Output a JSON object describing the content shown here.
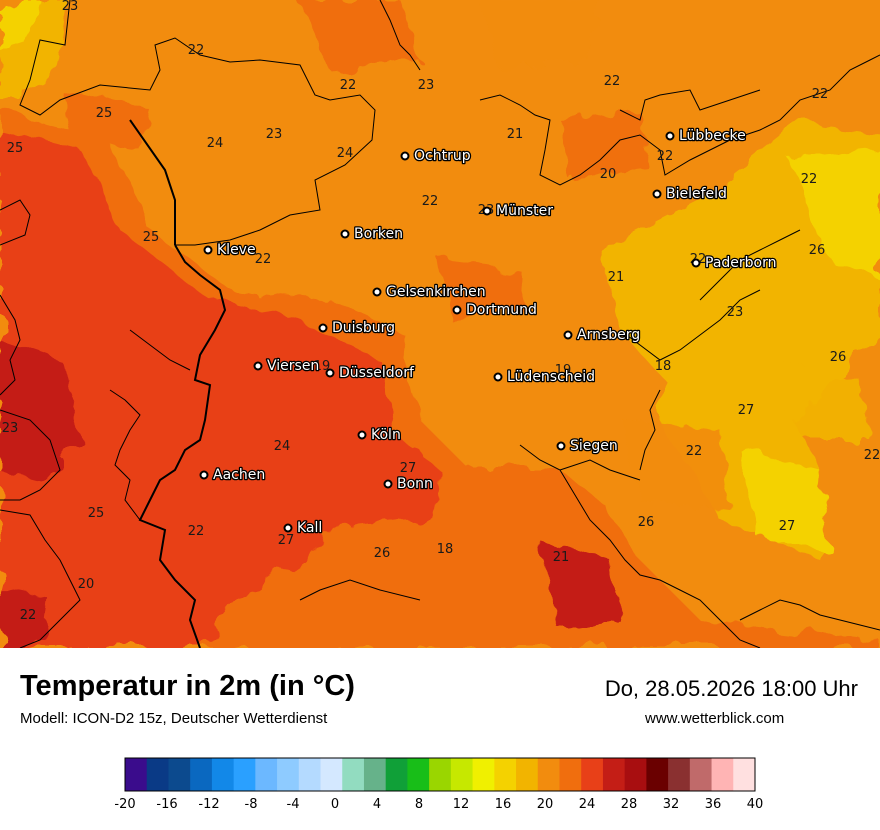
{
  "title": "Temperatur in 2m (in °C)",
  "model": "Modell: ICON-D2 15z, Deutscher Wetterdienst",
  "datetime": "Do, 28.05.2026 18:00 Uhr",
  "website": "www.wetterblick.com",
  "cities": [
    {
      "name": "Lübbecke"
    },
    {
      "name": "Ochtrup"
    },
    {
      "name": "Bielefeld"
    },
    {
      "name": "Münster"
    },
    {
      "name": "Kleve"
    },
    {
      "name": "Borken"
    },
    {
      "name": "Paderborn"
    },
    {
      "name": "Gelsenkirchen"
    },
    {
      "name": "Dortmund"
    },
    {
      "name": "Duisburg"
    },
    {
      "name": "Arnsberg"
    },
    {
      "name": "Viersen"
    },
    {
      "name": "Düsseldorf"
    },
    {
      "name": "Lüdenscheid"
    },
    {
      "name": "Köln"
    },
    {
      "name": "Siegen"
    },
    {
      "name": "Aachen"
    },
    {
      "name": "Bonn"
    },
    {
      "name": "Kall"
    }
  ],
  "temperature_labels": [
    "23",
    "22",
    "22",
    "23",
    "22",
    "25",
    "23",
    "24",
    "25",
    "24",
    "21",
    "22",
    "20",
    "22",
    "22",
    "22",
    "25",
    "23",
    "22",
    "22",
    "21",
    "26",
    "23",
    "19",
    "18",
    "19",
    "26",
    "27",
    "24",
    "23",
    "27",
    "22",
    "22",
    "22",
    "27",
    "26",
    "25",
    "18",
    "26",
    "27",
    "20",
    "21",
    "22"
  ],
  "colorbar": {
    "tick_labels": [
      "-20",
      "-16",
      "-12",
      "-8",
      "-4",
      "0",
      "4",
      "8",
      "12",
      "16",
      "20",
      "24",
      "28",
      "32",
      "36",
      "40"
    ],
    "colors": [
      "#3a0c8c",
      "#0a3a86",
      "#0c4a8e",
      "#0a68c0",
      "#1288e8",
      "#2aa0ff",
      "#6cb8ff",
      "#8ecbff",
      "#b4daff",
      "#d4e8ff",
      "#92dcc0",
      "#66b28a",
      "#10a038",
      "#18be18",
      "#9ad600",
      "#c6e800",
      "#f0f000",
      "#f4d200",
      "#f2b400",
      "#f28c0e",
      "#f06e0e",
      "#e84018",
      "#c41e16",
      "#a80e10",
      "#6a0000",
      "#8a3030",
      "#c06a6a",
      "#ffb4b4",
      "#ffe0e0"
    ]
  }
}
